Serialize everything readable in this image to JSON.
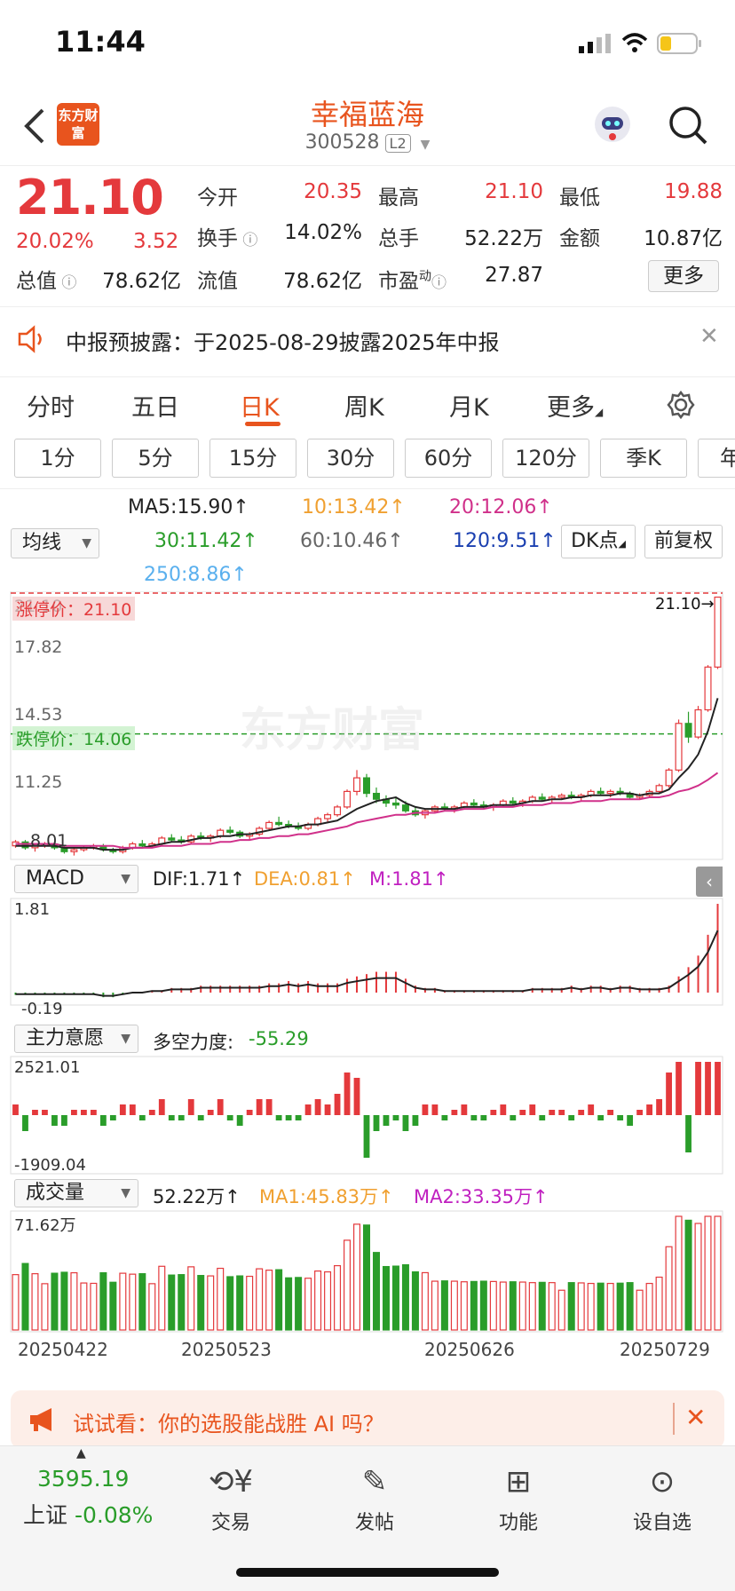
{
  "status_bar": {
    "time": "11:44"
  },
  "header": {
    "logo": "东方财富",
    "stock_name": "幸福蓝海",
    "stock_code": "300528",
    "level_badge": "L2"
  },
  "quote": {
    "price": "21.10",
    "change_pct": "20.02%",
    "change": "3.52",
    "fields": [
      {
        "label": "今开",
        "value": "20.35",
        "color": "#e4393c"
      },
      {
        "label": "最高",
        "value": "21.10",
        "color": "#e4393c"
      },
      {
        "label": "最低",
        "value": "19.88",
        "color": "#e4393c"
      },
      {
        "label": "换手",
        "value": "14.02%",
        "color": "#222222"
      },
      {
        "label": "总手",
        "value": "52.22万",
        "color": "#222222"
      },
      {
        "label": "金额",
        "value": "10.87亿",
        "color": "#222222"
      },
      {
        "label": "总值",
        "value": "78.62亿",
        "color": "#222222"
      },
      {
        "label": "流值",
        "value": "78.62亿",
        "color": "#222222"
      },
      {
        "label": "市盈",
        "value": "27.87",
        "color": "#222222"
      }
    ],
    "pe_superscript": "动",
    "more_label": "更多"
  },
  "notice": {
    "text": "中报预披露：于2025-08-29披露2025年中报"
  },
  "tabs": [
    "分时",
    "五日",
    "日K",
    "周K",
    "月K",
    "更多"
  ],
  "active_tab": "日K",
  "minute_buttons": [
    "1分",
    "5分",
    "15分",
    "30分",
    "60分",
    "120分",
    "季K",
    "年"
  ],
  "ma_legend": {
    "selector": "均线",
    "items": [
      {
        "label": "MA5:15.90↑",
        "color": "#222222"
      },
      {
        "label": "10:13.42↑",
        "color": "#f0a030"
      },
      {
        "label": "20:12.06↑",
        "color": "#d0308a"
      },
      {
        "label": "30:11.42↑",
        "color": "#2a9d2a"
      },
      {
        "label": "60:10.46↑",
        "color": "#666666"
      },
      {
        "label": "120:9.51↑",
        "color": "#1a3fb0"
      },
      {
        "label": "250:8.86↑",
        "color": "#5ab0ee"
      }
    ],
    "dk_button": "DK点",
    "adjust_button": "前复权"
  },
  "kline": {
    "y_labels": [
      "21.10",
      "17.82",
      "14.53",
      "11.25",
      "8.01"
    ],
    "limit_up_label": "涨停价：21.10",
    "limit_down_label": "跌停价：14.06",
    "last_price_tag": "21.10→",
    "watermark": "东方财富"
  },
  "macd": {
    "selector": "MACD",
    "dif": "DIF:1.71↑",
    "dea": "DEA:0.81↑",
    "m": "M:1.81↑",
    "max_label": "1.81",
    "min_label": "-0.19"
  },
  "main_force": {
    "selector": "主力意愿",
    "label": "多空力度:",
    "value": "-55.29",
    "max_label": "2521.01",
    "min_label": "-1909.04"
  },
  "volume": {
    "selector": "成交量",
    "value": "52.22万↑",
    "ma1": "MA1:45.83万↑",
    "ma2": "MA2:33.35万↑",
    "max_label": "71.62万"
  },
  "dates": [
    "20250422",
    "20250523",
    "20250626",
    "20250729"
  ],
  "promo": {
    "text": "试试看：你的选股能战胜 AI 吗？"
  },
  "bottom_nav": {
    "index_value": "3595.19",
    "index_name": "上证",
    "index_change": "-0.08%",
    "items": [
      "交易",
      "发帖",
      "功能",
      "设自选"
    ]
  },
  "chart_data": {
    "type": "candlestick",
    "ylim": [
      7.6,
      21.4
    ],
    "candles": [
      [
        8.3,
        8.6,
        8.2,
        8.5
      ],
      [
        8.5,
        8.6,
        8.1,
        8.2
      ],
      [
        8.2,
        8.4,
        8.0,
        8.3
      ],
      [
        8.3,
        8.5,
        8.2,
        8.4
      ],
      [
        8.4,
        8.5,
        8.1,
        8.2
      ],
      [
        8.2,
        8.3,
        7.9,
        8.0
      ],
      [
        8.0,
        8.2,
        7.8,
        8.1
      ],
      [
        8.1,
        8.3,
        8.0,
        8.2
      ],
      [
        8.2,
        8.4,
        8.1,
        8.3
      ],
      [
        8.3,
        8.4,
        8.0,
        8.1
      ],
      [
        8.1,
        8.2,
        7.9,
        8.0
      ],
      [
        8.0,
        8.3,
        7.9,
        8.2
      ],
      [
        8.2,
        8.5,
        8.1,
        8.4
      ],
      [
        8.4,
        8.6,
        8.2,
        8.3
      ],
      [
        8.3,
        8.5,
        8.2,
        8.4
      ],
      [
        8.4,
        8.8,
        8.3,
        8.7
      ],
      [
        8.7,
        8.9,
        8.5,
        8.6
      ],
      [
        8.6,
        8.8,
        8.4,
        8.5
      ],
      [
        8.5,
        8.9,
        8.4,
        8.8
      ],
      [
        8.8,
        9.0,
        8.6,
        8.7
      ],
      [
        8.7,
        8.9,
        8.5,
        8.8
      ],
      [
        8.8,
        9.2,
        8.7,
        9.1
      ],
      [
        9.1,
        9.3,
        8.9,
        9.0
      ],
      [
        9.0,
        9.1,
        8.7,
        8.8
      ],
      [
        8.8,
        9.0,
        8.6,
        8.9
      ],
      [
        8.9,
        9.3,
        8.8,
        9.2
      ],
      [
        9.2,
        9.6,
        9.1,
        9.5
      ],
      [
        9.5,
        9.8,
        9.3,
        9.4
      ],
      [
        9.4,
        9.6,
        9.2,
        9.3
      ],
      [
        9.3,
        9.5,
        9.1,
        9.2
      ],
      [
        9.2,
        9.5,
        9.1,
        9.4
      ],
      [
        9.4,
        9.8,
        9.3,
        9.7
      ],
      [
        9.7,
        10.0,
        9.5,
        9.9
      ],
      [
        9.9,
        10.4,
        9.8,
        10.3
      ],
      [
        10.3,
        11.2,
        10.2,
        11.1
      ],
      [
        11.1,
        12.2,
        10.9,
        11.8
      ],
      [
        11.8,
        12.0,
        10.8,
        11.0
      ],
      [
        11.0,
        11.3,
        10.5,
        10.7
      ],
      [
        10.7,
        10.9,
        10.3,
        10.5
      ],
      [
        10.5,
        10.8,
        10.2,
        10.4
      ],
      [
        10.4,
        10.6,
        10.0,
        10.1
      ],
      [
        10.1,
        10.3,
        9.8,
        9.9
      ],
      [
        9.9,
        10.2,
        9.7,
        10.1
      ],
      [
        10.1,
        10.4,
        10.0,
        10.3
      ],
      [
        10.3,
        10.5,
        10.1,
        10.2
      ],
      [
        10.2,
        10.4,
        10.0,
        10.3
      ],
      [
        10.3,
        10.6,
        10.2,
        10.5
      ],
      [
        10.5,
        10.7,
        10.3,
        10.4
      ],
      [
        10.4,
        10.6,
        10.2,
        10.3
      ],
      [
        10.3,
        10.5,
        10.1,
        10.4
      ],
      [
        10.4,
        10.7,
        10.3,
        10.6
      ],
      [
        10.6,
        10.8,
        10.4,
        10.5
      ],
      [
        10.5,
        10.7,
        10.3,
        10.6
      ],
      [
        10.6,
        10.9,
        10.5,
        10.8
      ],
      [
        10.8,
        11.0,
        10.6,
        10.7
      ],
      [
        10.7,
        10.9,
        10.5,
        10.8
      ],
      [
        10.8,
        11.0,
        10.7,
        10.9
      ],
      [
        10.9,
        11.1,
        10.7,
        10.8
      ],
      [
        10.8,
        11.0,
        10.6,
        10.9
      ],
      [
        10.9,
        11.2,
        10.8,
        11.1
      ],
      [
        11.1,
        11.3,
        10.9,
        11.0
      ],
      [
        11.0,
        11.2,
        10.8,
        11.1
      ],
      [
        11.1,
        11.3,
        10.9,
        11.0
      ],
      [
        11.0,
        11.1,
        10.7,
        10.8
      ],
      [
        10.8,
        11.0,
        10.7,
        10.9
      ],
      [
        10.9,
        11.2,
        10.8,
        11.1
      ],
      [
        11.1,
        11.5,
        11.0,
        11.4
      ],
      [
        11.4,
        12.3,
        11.3,
        12.2
      ],
      [
        12.2,
        14.8,
        12.1,
        14.6
      ],
      [
        14.6,
        15.2,
        13.6,
        13.9
      ],
      [
        13.9,
        15.5,
        13.8,
        15.3
      ],
      [
        15.3,
        17.6,
        15.2,
        17.5
      ],
      [
        17.5,
        21.1,
        17.4,
        21.1
      ]
    ],
    "ma5": [
      8.3,
      8.3,
      8.3,
      8.3,
      8.3,
      8.2,
      8.2,
      8.2,
      8.2,
      8.1,
      8.1,
      8.1,
      8.2,
      8.2,
      8.3,
      8.4,
      8.5,
      8.5,
      8.6,
      8.7,
      8.7,
      8.8,
      8.8,
      8.9,
      8.9,
      9.0,
      9.1,
      9.2,
      9.3,
      9.3,
      9.4,
      9.4,
      9.5,
      9.6,
      9.9,
      10.2,
      10.4,
      10.6,
      10.7,
      10.8,
      10.5,
      10.3,
      10.2,
      10.2,
      10.2,
      10.2,
      10.3,
      10.3,
      10.3,
      10.4,
      10.4,
      10.4,
      10.5,
      10.6,
      10.6,
      10.7,
      10.7,
      10.8,
      10.8,
      10.9,
      10.9,
      10.9,
      11.0,
      11.0,
      10.9,
      11.0,
      11.0,
      11.2,
      11.8,
      12.3,
      13.0,
      14.2,
      15.9
    ],
    "ma20": [
      8.4,
      8.4,
      8.4,
      8.4,
      8.4,
      8.3,
      8.3,
      8.3,
      8.3,
      8.3,
      8.3,
      8.2,
      8.2,
      8.2,
      8.2,
      8.3,
      8.3,
      8.3,
      8.4,
      8.4,
      8.4,
      8.5,
      8.5,
      8.6,
      8.6,
      8.7,
      8.7,
      8.8,
      8.8,
      8.9,
      8.9,
      9.0,
      9.1,
      9.2,
      9.3,
      9.5,
      9.6,
      9.7,
      9.8,
      9.9,
      9.9,
      10.0,
      10.0,
      10.0,
      10.1,
      10.1,
      10.2,
      10.2,
      10.2,
      10.3,
      10.3,
      10.3,
      10.4,
      10.4,
      10.4,
      10.5,
      10.5,
      10.5,
      10.6,
      10.6,
      10.6,
      10.7,
      10.7,
      10.7,
      10.7,
      10.8,
      10.8,
      10.9,
      11.1,
      11.2,
      11.4,
      11.7,
      12.06
    ]
  }
}
